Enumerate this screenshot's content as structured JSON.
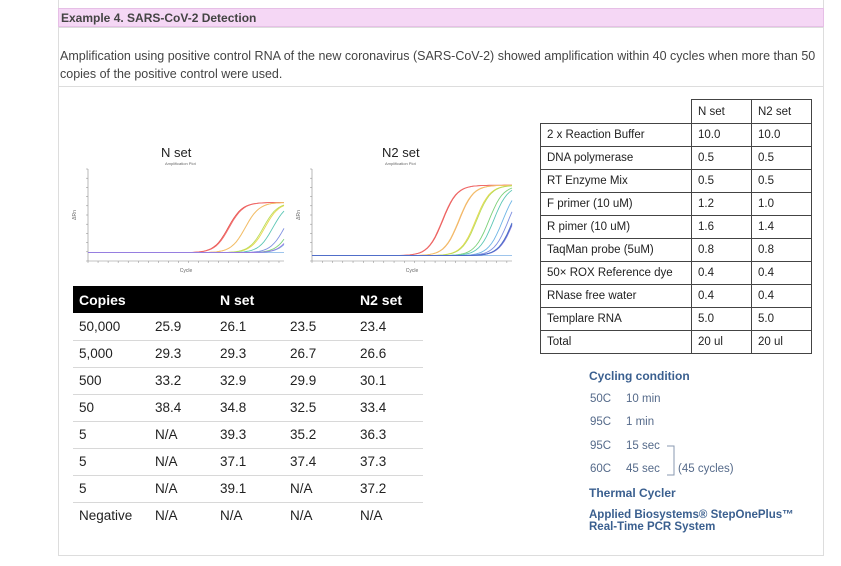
{
  "header": {
    "title": "Example 4. SARS-CoV-2 Detection"
  },
  "description": "Amplification using positive control RNA of the new coronavirus (SARS-CoV-2) showed amplification within 40 cycles when more than 50 copies of the positive control were used.",
  "plots": [
    {
      "title": "N set",
      "subtitle": "Amplification Plot",
      "xlabel": "Cycle",
      "ylabel": "ΔRn"
    },
    {
      "title": "N2 set",
      "subtitle": "Amplification Plot",
      "xlabel": "Cycle",
      "ylabel": "ΔRn"
    }
  ],
  "chart_data": [
    {
      "type": "line",
      "title": "N set",
      "subtitle": "Amplification Plot",
      "xlabel": "Cycle",
      "ylabel": "ΔRn",
      "xlim": [
        1,
        40
      ],
      "ylim": [
        -0.5,
        5.0
      ],
      "thresholds": [
        25.9,
        26.1,
        29.3,
        29.3,
        33.2,
        32.9,
        38.4,
        34.8,
        39.3,
        37.1,
        39.1
      ],
      "plateau": 3.0,
      "colors": [
        "#e8544f",
        "#f06a6a",
        "#f4a460",
        "#f2c26b",
        "#e8d84a",
        "#b9dd5a",
        "#7cd17a",
        "#5cc6b5",
        "#6fb5e6",
        "#7e8fe0",
        "#9b7be0"
      ]
    },
    {
      "type": "line",
      "title": "N2 set",
      "subtitle": "Amplification Plot",
      "xlabel": "Cycle",
      "ylabel": "ΔRn",
      "xlim": [
        1,
        40
      ],
      "ylim": [
        -0.5,
        8.0
      ],
      "thresholds": [
        23.5,
        23.4,
        26.7,
        26.6,
        29.9,
        30.1,
        32.5,
        33.4,
        35.2,
        36.3,
        37.4,
        37.3,
        37.2
      ],
      "plateau": 6.5,
      "colors": [
        "#e8544f",
        "#f06a6a",
        "#f4a460",
        "#f2c26b",
        "#e8d84a",
        "#b9dd5a",
        "#7cd17a",
        "#5cc6b5",
        "#6fb5e6",
        "#7e8fe0",
        "#9b7be0",
        "#5a7bd0",
        "#4d6cc8"
      ]
    }
  ],
  "ct_table": {
    "headers": [
      "Copies",
      "",
      "N set",
      "",
      "N2 set"
    ],
    "rows": [
      [
        "50,000",
        "25.9",
        "26.1",
        "23.5",
        "23.4"
      ],
      [
        "5,000",
        "29.3",
        "29.3",
        "26.7",
        "26.6"
      ],
      [
        "500",
        "33.2",
        "32.9",
        "29.9",
        "30.1"
      ],
      [
        "50",
        "38.4",
        "34.8",
        "32.5",
        "33.4"
      ],
      [
        "5",
        "N/A",
        "39.3",
        "35.2",
        "36.3"
      ],
      [
        "5",
        "N/A",
        "37.1",
        "37.4",
        "37.3"
      ],
      [
        "5",
        "N/A",
        "39.1",
        "N/A",
        "37.2"
      ],
      [
        "Negative",
        "N/A",
        "N/A",
        "N/A",
        "N/A"
      ]
    ]
  },
  "reaction_table": {
    "headers": [
      "",
      "N set",
      "N2 set"
    ],
    "rows": [
      [
        "2 x Reaction Buffer",
        "10.0",
        "10.0"
      ],
      [
        "DNA polymerase",
        "0.5",
        "0.5"
      ],
      [
        "RT Enzyme Mix",
        "0.5",
        "0.5"
      ],
      [
        "F primer (10 uM)",
        "1.2",
        "1.0"
      ],
      [
        "R pimer (10 uM)",
        "1.6",
        "1.4"
      ],
      [
        "TaqMan probe (5uM)",
        "0.8",
        "0.8"
      ],
      [
        "50× ROX Reference dye",
        "0.4",
        "0.4"
      ],
      [
        "RNase free water",
        "0.4",
        "0.4"
      ],
      [
        "Templare RNA",
        "5.0",
        "5.0"
      ],
      [
        "Total",
        "20 ul",
        "20 ul"
      ]
    ]
  },
  "cycling": {
    "title": "Cycling condition",
    "steps": [
      {
        "temp": "50C",
        "time": "10 min"
      },
      {
        "temp": "95C",
        "time": "1 min"
      },
      {
        "temp": "95C",
        "time": "15 sec"
      },
      {
        "temp": "60C",
        "time": "45 sec"
      }
    ],
    "cycles": "(45 cycles)"
  },
  "thermal_cycler": {
    "title": "Thermal Cycler",
    "line1": "Applied Biosystems® StepOnePlus™",
    "line2": "Real-Time PCR System"
  }
}
